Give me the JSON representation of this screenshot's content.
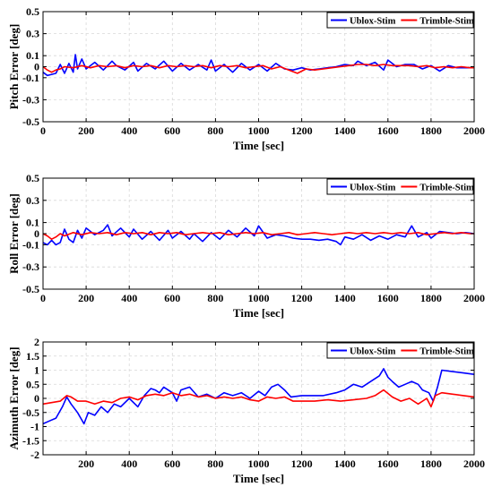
{
  "chart_data": [
    {
      "type": "line",
      "xlabel": "Time [sec]",
      "ylabel": "Pitch Error [deg]",
      "xlim": [
        0,
        2000
      ],
      "ylim": [
        -0.5,
        0.5
      ],
      "xticks": [
        0,
        200,
        400,
        600,
        800,
        1000,
        1200,
        1400,
        1600,
        1800,
        2000
      ],
      "yticks": [
        -0.5,
        -0.3,
        -0.1,
        0,
        0.1,
        0.3,
        0.5
      ],
      "ytick_labels": [
        "-0.5",
        "-0.3",
        "-0.1",
        "0",
        "0.1",
        "0.3",
        "0.5"
      ],
      "grid": true,
      "legend_position": "top-right",
      "series": [
        {
          "name": "Ublox-Stim",
          "color": "#0000ff",
          "x": [
            0,
            20,
            40,
            60,
            80,
            100,
            120,
            140,
            150,
            160,
            180,
            200,
            240,
            280,
            320,
            340,
            380,
            420,
            440,
            480,
            520,
            560,
            600,
            640,
            680,
            720,
            760,
            780,
            800,
            840,
            880,
            920,
            960,
            1000,
            1040,
            1080,
            1120,
            1160,
            1200,
            1240,
            1280,
            1320,
            1360,
            1400,
            1440,
            1460,
            1500,
            1540,
            1580,
            1600,
            1640,
            1680,
            1720,
            1760,
            1800,
            1840,
            1880,
            1920,
            1960,
            2000
          ],
          "y": [
            -0.05,
            -0.08,
            -0.07,
            -0.06,
            0.02,
            -0.06,
            0.03,
            -0.05,
            0.11,
            -0.02,
            0.07,
            -0.02,
            0.04,
            -0.03,
            0.05,
            0.01,
            -0.03,
            0.04,
            -0.04,
            0.03,
            -0.02,
            0.05,
            -0.04,
            0.03,
            -0.03,
            0.02,
            -0.03,
            0.06,
            -0.04,
            0.02,
            -0.05,
            0.03,
            -0.03,
            0.02,
            -0.04,
            0.03,
            -0.02,
            -0.03,
            -0.01,
            -0.03,
            -0.02,
            -0.01,
            0.0,
            0.02,
            0.01,
            0.05,
            0.01,
            0.04,
            -0.03,
            0.06,
            0.0,
            0.02,
            0.02,
            -0.02,
            0.01,
            -0.04,
            0.01,
            -0.01,
            -0.01,
            -0.01
          ]
        },
        {
          "name": "Trimble-Stim",
          "color": "#ff0000",
          "x": [
            0,
            20,
            40,
            60,
            80,
            100,
            140,
            180,
            220,
            260,
            300,
            340,
            380,
            420,
            460,
            500,
            540,
            580,
            620,
            660,
            700,
            740,
            780,
            820,
            860,
            900,
            940,
            980,
            1020,
            1060,
            1100,
            1140,
            1180,
            1220,
            1260,
            1300,
            1340,
            1380,
            1420,
            1460,
            1500,
            1540,
            1580,
            1620,
            1660,
            1700,
            1740,
            1780,
            1820,
            1860,
            1900,
            1940,
            1980,
            2000
          ],
          "y": [
            0.0,
            -0.03,
            -0.05,
            -0.03,
            -0.02,
            0.0,
            -0.01,
            0.01,
            -0.01,
            0.01,
            0.0,
            0.01,
            -0.01,
            0.01,
            0.0,
            0.01,
            -0.01,
            0.01,
            0.0,
            0.01,
            0.0,
            0.01,
            -0.01,
            0.01,
            0.0,
            0.01,
            -0.01,
            0.0,
            0.01,
            -0.02,
            0.0,
            -0.03,
            -0.06,
            -0.02,
            -0.03,
            -0.02,
            -0.01,
            0.0,
            0.01,
            0.02,
            0.02,
            0.01,
            0.02,
            0.01,
            0.01,
            0.01,
            0.0,
            0.01,
            -0.01,
            0.0,
            -0.01,
            0.0,
            -0.01,
            -0.01
          ]
        }
      ]
    },
    {
      "type": "line",
      "xlabel": "Time [sec]",
      "ylabel": "Roll Error [deg]",
      "xlim": [
        0,
        2000
      ],
      "ylim": [
        -0.5,
        0.5
      ],
      "xticks": [
        0,
        200,
        400,
        600,
        800,
        1000,
        1200,
        1400,
        1600,
        1800,
        2000
      ],
      "yticks": [
        -0.5,
        -0.3,
        -0.1,
        0,
        0.1,
        0.3,
        0.5
      ],
      "ytick_labels": [
        "-0.5",
        "-0.3",
        "-0.1",
        "0",
        "0.1",
        "0.3",
        "0.5"
      ],
      "grid": true,
      "legend_position": "top-right",
      "series": [
        {
          "name": "Ublox-Stim",
          "color": "#0000ff",
          "x": [
            0,
            20,
            40,
            60,
            80,
            100,
            120,
            140,
            160,
            180,
            200,
            240,
            280,
            300,
            320,
            360,
            400,
            420,
            460,
            500,
            540,
            580,
            600,
            640,
            680,
            700,
            740,
            780,
            820,
            860,
            900,
            940,
            980,
            1000,
            1040,
            1080,
            1120,
            1160,
            1200,
            1240,
            1280,
            1320,
            1360,
            1380,
            1400,
            1440,
            1480,
            1520,
            1560,
            1600,
            1640,
            1680,
            1710,
            1740,
            1780,
            1800,
            1840,
            1880,
            1920,
            1960,
            2000
          ],
          "y": [
            -0.08,
            -0.1,
            -0.06,
            -0.1,
            -0.08,
            0.04,
            -0.05,
            -0.08,
            0.03,
            -0.04,
            0.05,
            -0.01,
            0.03,
            0.08,
            -0.02,
            0.05,
            -0.03,
            0.04,
            -0.05,
            0.02,
            -0.06,
            0.03,
            -0.04,
            0.02,
            -0.05,
            0.0,
            -0.07,
            0.01,
            -0.05,
            0.03,
            -0.03,
            0.05,
            -0.02,
            0.07,
            -0.04,
            -0.01,
            -0.02,
            -0.04,
            -0.05,
            -0.05,
            -0.06,
            -0.05,
            -0.07,
            -0.1,
            -0.03,
            -0.05,
            -0.01,
            -0.06,
            -0.02,
            -0.05,
            -0.01,
            -0.03,
            0.07,
            -0.03,
            0.01,
            -0.04,
            0.02,
            0.01,
            0.0,
            0.01,
            0.0
          ]
        },
        {
          "name": "Trimble-Stim",
          "color": "#ff0000",
          "x": [
            0,
            20,
            40,
            60,
            80,
            100,
            140,
            180,
            220,
            260,
            300,
            340,
            380,
            420,
            460,
            500,
            540,
            580,
            620,
            660,
            700,
            740,
            780,
            820,
            860,
            900,
            940,
            980,
            1020,
            1060,
            1100,
            1140,
            1180,
            1220,
            1260,
            1300,
            1340,
            1380,
            1420,
            1460,
            1500,
            1540,
            1580,
            1620,
            1660,
            1700,
            1740,
            1780,
            1820,
            1860,
            1900,
            1940,
            1980,
            2000
          ],
          "y": [
            0.0,
            -0.02,
            -0.05,
            -0.03,
            0.0,
            -0.02,
            0.01,
            -0.01,
            0.01,
            0.0,
            0.01,
            -0.01,
            0.01,
            0.0,
            0.01,
            -0.01,
            0.01,
            0.0,
            0.01,
            -0.01,
            0.0,
            0.01,
            0.0,
            0.01,
            -0.01,
            0.0,
            0.01,
            0.0,
            0.01,
            -0.01,
            0.0,
            0.01,
            -0.01,
            0.0,
            0.01,
            0.0,
            -0.01,
            0.0,
            0.01,
            0.0,
            0.01,
            0.0,
            0.01,
            0.0,
            0.01,
            0.0,
            0.01,
            -0.01,
            0.0,
            0.01,
            0.0,
            0.01,
            0.0,
            0.0
          ]
        }
      ]
    },
    {
      "type": "line",
      "xlabel": "Time [sec]",
      "ylabel": "Azimuth Error [deg]",
      "xlim": [
        0,
        2000
      ],
      "ylim": [
        -2,
        2
      ],
      "xticks": [
        200,
        400,
        600,
        800,
        1000,
        1200,
        1400,
        1600,
        1800,
        2000
      ],
      "yticks": [
        -2,
        -1.5,
        -1,
        -0.5,
        0,
        0.5,
        1,
        1.5,
        2
      ],
      "ytick_labels": [
        "-2",
        "-1.5",
        "-1",
        "-0.5",
        "0",
        "0.5",
        "1",
        "1.5",
        "2"
      ],
      "grid": true,
      "legend_position": "top-right",
      "series": [
        {
          "name": "Ublox-Stim",
          "color": "#0000ff",
          "x": [
            0,
            30,
            60,
            90,
            110,
            130,
            160,
            190,
            210,
            240,
            270,
            300,
            330,
            360,
            400,
            440,
            470,
            500,
            520,
            540,
            560,
            600,
            620,
            640,
            680,
            720,
            760,
            800,
            840,
            880,
            920,
            960,
            1000,
            1030,
            1060,
            1090,
            1120,
            1150,
            1200,
            1260,
            1300,
            1360,
            1400,
            1440,
            1480,
            1520,
            1560,
            1580,
            1600,
            1620,
            1650,
            1680,
            1710,
            1740,
            1760,
            1790,
            1810,
            1830,
            1850,
            1900,
            1950,
            2000
          ],
          "y": [
            -0.9,
            -0.8,
            -0.7,
            -0.3,
            0.05,
            -0.2,
            -0.5,
            -0.9,
            -0.5,
            -0.6,
            -0.3,
            -0.5,
            -0.2,
            -0.3,
            0.0,
            -0.3,
            0.1,
            0.35,
            0.3,
            0.2,
            0.4,
            0.2,
            -0.1,
            0.3,
            0.4,
            0.05,
            0.15,
            0.0,
            0.2,
            0.1,
            0.2,
            0.0,
            0.25,
            0.1,
            0.4,
            0.5,
            0.3,
            0.05,
            0.1,
            0.1,
            0.1,
            0.2,
            0.3,
            0.5,
            0.4,
            0.6,
            0.8,
            1.05,
            0.75,
            0.6,
            0.4,
            0.5,
            0.6,
            0.5,
            0.3,
            0.2,
            -0.1,
            0.4,
            1.0,
            0.95,
            0.9,
            0.85
          ]
        },
        {
          "name": "Trimble-Stim",
          "color": "#ff0000",
          "x": [
            0,
            40,
            80,
            110,
            130,
            160,
            200,
            240,
            280,
            320,
            360,
            400,
            440,
            480,
            520,
            560,
            600,
            640,
            680,
            720,
            760,
            800,
            840,
            880,
            920,
            960,
            1000,
            1040,
            1080,
            1120,
            1160,
            1200,
            1260,
            1320,
            1380,
            1440,
            1500,
            1540,
            1580,
            1620,
            1660,
            1700,
            1740,
            1780,
            1800,
            1820,
            1850,
            1900,
            1950,
            2000
          ],
          "y": [
            -0.2,
            -0.15,
            -0.1,
            0.1,
            0.05,
            -0.1,
            -0.1,
            -0.2,
            -0.1,
            -0.15,
            0.0,
            0.05,
            -0.05,
            0.1,
            0.15,
            0.1,
            0.2,
            0.1,
            0.15,
            0.05,
            0.1,
            0.0,
            0.05,
            0.0,
            0.05,
            -0.05,
            -0.1,
            0.05,
            0.0,
            0.05,
            -0.1,
            -0.1,
            -0.1,
            -0.05,
            -0.1,
            -0.05,
            0.0,
            0.1,
            0.3,
            0.05,
            -0.1,
            0.0,
            -0.2,
            0.0,
            -0.3,
            0.1,
            0.2,
            0.15,
            0.1,
            0.05
          ]
        }
      ]
    }
  ]
}
